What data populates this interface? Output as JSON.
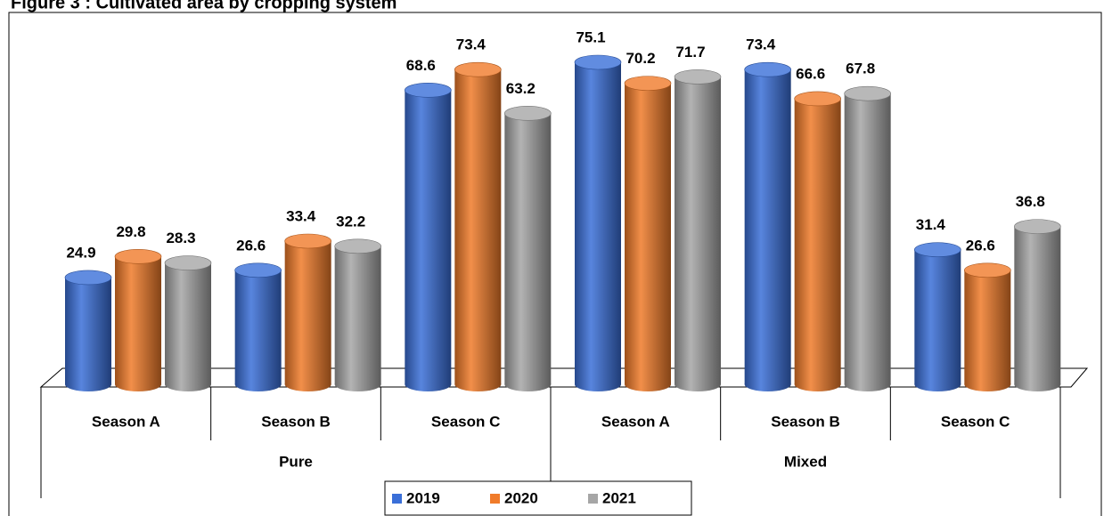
{
  "chart_data": {
    "type": "bar",
    "title": "Figure 3 : Cultivated area by cropping system",
    "groups": [
      {
        "name": "Pure",
        "categories": [
          "Season A",
          "Season B",
          "Season C"
        ]
      },
      {
        "name": "Mixed",
        "categories": [
          "Season A",
          "Season B",
          "Season C"
        ]
      }
    ],
    "series": [
      {
        "name": "2019",
        "color": "#3a6fd8",
        "values": [
          24.9,
          26.6,
          68.6,
          75.1,
          73.4,
          31.4
        ]
      },
      {
        "name": "2020",
        "color": "#f07b2a",
        "values": [
          29.8,
          33.4,
          73.4,
          70.2,
          66.6,
          26.6
        ]
      },
      {
        "name": "2021",
        "color": "#a6a6a6",
        "values": [
          28.3,
          32.2,
          63.2,
          71.7,
          67.8,
          36.8
        ]
      }
    ],
    "legend": "bottom"
  }
}
